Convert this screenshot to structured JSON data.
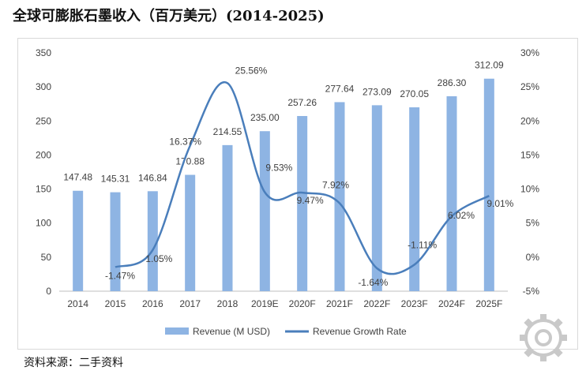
{
  "title": "全球可膨胀石墨收入（百万美元）(2014-2025)",
  "source": "资料来源：二手资料",
  "chart_data": {
    "type": "bar",
    "categories": [
      "2014",
      "2015",
      "2016",
      "2017",
      "2018",
      "2019E",
      "2020F",
      "2021F",
      "2022F",
      "2023F",
      "2024F",
      "2025F"
    ],
    "series": [
      {
        "name": "Revenue (M USD)",
        "type": "bar",
        "axis": "left",
        "color": "#8eb4e3",
        "values": [
          147.48,
          145.31,
          146.84,
          170.88,
          214.55,
          235.0,
          257.26,
          277.64,
          273.09,
          270.05,
          286.3,
          312.09
        ],
        "labels": [
          "147.48",
          "145.31",
          "146.84",
          "170.88",
          "214.55",
          "235.00",
          "257.26",
          "277.64",
          "273.09",
          "270.05",
          "286.30",
          "312.09"
        ]
      },
      {
        "name": "Revenue Growth Rate",
        "type": "line",
        "axis": "right",
        "color": "#4a7ebb",
        "values": [
          null,
          -1.47,
          1.05,
          16.37,
          25.56,
          9.53,
          9.47,
          7.92,
          -1.64,
          -1.11,
          6.02,
          9.01
        ],
        "labels": [
          null,
          "-1.47%",
          "1.05%",
          "16.37%",
          "25.56%",
          "9.53%",
          "9.47%",
          "7.92%",
          "-1.64%",
          "-1.11%",
          "6.02%",
          "9.01%"
        ]
      }
    ],
    "y_left": {
      "min": 0,
      "max": 350,
      "step": 50,
      "ticks": [
        "0",
        "50",
        "100",
        "150",
        "200",
        "250",
        "300",
        "350"
      ]
    },
    "y_right": {
      "min": -5,
      "max": 30,
      "step": 5,
      "ticks": [
        "-5%",
        "0%",
        "5%",
        "10%",
        "15%",
        "20%",
        "25%",
        "30%"
      ]
    },
    "grid": false,
    "legend_position": "bottom"
  }
}
